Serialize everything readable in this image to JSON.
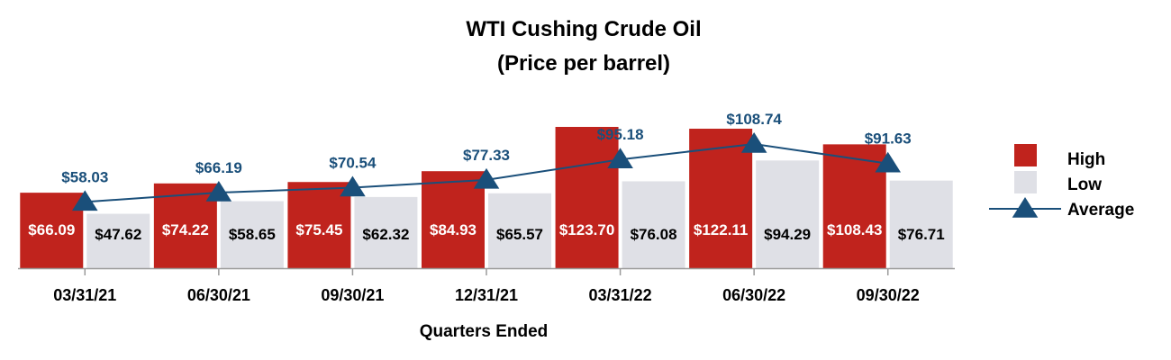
{
  "chart_data": {
    "type": "bar",
    "title": "WTI Cushing Crude Oil",
    "subtitle": "(Price per barrel)",
    "xlabel": "Quarters Ended",
    "ylabel": "",
    "categories": [
      "03/31/21",
      "06/30/21",
      "09/30/21",
      "12/31/21",
      "03/31/22",
      "06/30/22",
      "09/30/22"
    ],
    "series": [
      {
        "name": "High",
        "kind": "bar",
        "color": "#c0231d",
        "values": [
          66.09,
          74.22,
          75.45,
          84.93,
          123.7,
          122.11,
          108.43
        ],
        "labels": [
          "$66.09",
          "$74.22",
          "$75.45",
          "$84.93",
          "$123.70",
          "$122.11",
          "$108.43"
        ]
      },
      {
        "name": "Low",
        "kind": "bar",
        "color": "#dfe0e6",
        "values": [
          47.62,
          58.65,
          62.32,
          65.57,
          76.08,
          94.29,
          76.71
        ],
        "labels": [
          "$47.62",
          "$58.65",
          "$62.32",
          "$65.57",
          "$76.08",
          "$94.29",
          "$76.71"
        ]
      },
      {
        "name": "Average",
        "kind": "line",
        "marker": "triangle",
        "color": "#1a4f7a",
        "values": [
          58.03,
          66.19,
          70.54,
          77.33,
          95.18,
          108.74,
          91.63
        ],
        "labels": [
          "$58.03",
          "$66.19",
          "$70.54",
          "$77.33",
          "$95.18",
          "$108.74",
          "$91.63"
        ]
      }
    ],
    "ylim": [
      0,
      140
    ],
    "grid": false,
    "legend": "right"
  }
}
